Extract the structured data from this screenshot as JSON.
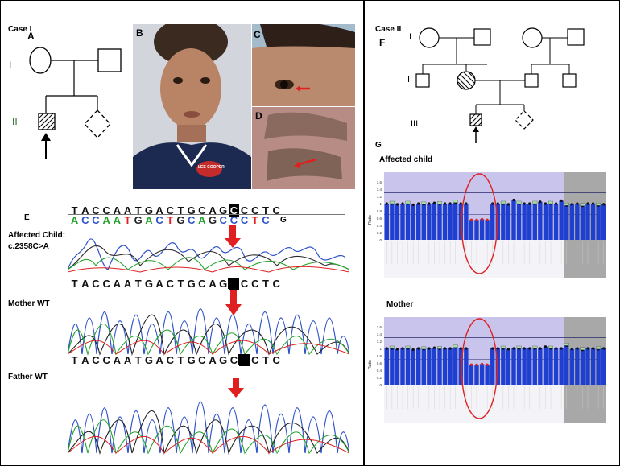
{
  "case1": {
    "title": "Case  I",
    "panel_A": "A",
    "gen_I": "I",
    "gen_II": "II"
  },
  "case2": {
    "title": "Case  II",
    "panel_F": "F",
    "gen_I": "I",
    "gen_II": "II",
    "gen_III": "III"
  },
  "photos": {
    "panel_B": "B",
    "panel_C": "C",
    "panel_D": "D",
    "shirt_logo": "LEE COOPER"
  },
  "sequencing": {
    "panel_E": "E",
    "panel_G_inline": "G",
    "reference_seq": [
      "T",
      "A",
      "C",
      "C",
      "A",
      "A",
      "T",
      "G",
      "A",
      "C",
      "T",
      "G",
      "C",
      "A",
      "G",
      "C",
      "C",
      "C",
      "T",
      "C"
    ],
    "colored_seq": [
      "A",
      "C",
      "C",
      "A",
      "A",
      "T",
      "G",
      "A",
      "C",
      "T",
      "G",
      "C",
      "A",
      "G",
      "C",
      "C",
      "C",
      "T",
      "C"
    ],
    "mother_seq": [
      "T",
      "A",
      "C",
      "C",
      "A",
      "A",
      "T",
      "G",
      "A",
      "C",
      "T",
      "G",
      "C",
      "A",
      "G",
      "C",
      "C",
      "C",
      "T",
      "C"
    ],
    "father_seq": [
      "T",
      "A",
      "C",
      "C",
      "A",
      "A",
      "T",
      "G",
      "A",
      "C",
      "T",
      "G",
      "C",
      "A",
      "G",
      "C",
      "C",
      "C",
      "T",
      "C"
    ],
    "affected_label_1": "Affected Child:",
    "affected_label_2": "c.2358C>A",
    "mother_label": "Mother WT",
    "father_label": "Father WT"
  },
  "mlpa": {
    "panel_G": "G",
    "affected_title": "Affected child",
    "mother_title": "Mother",
    "y_axis_label": "Ratio",
    "y_ticks": [
      "1.6",
      "1.4",
      "1.2",
      "1",
      "0.8",
      "0.6",
      "0.4",
      "0.2",
      "0"
    ],
    "affected_values": [
      1.0,
      1.0,
      0.98,
      1.0,
      1.0,
      0.97,
      1.0,
      0.98,
      1.0,
      1.02,
      0.99,
      1.0,
      1.0,
      1.03,
      1.0,
      1.0,
      0.55,
      0.55,
      0.57,
      0.55,
      1.0,
      1.0,
      1.0,
      0.98,
      1.1,
      1.0,
      1.0,
      1.0,
      1.0,
      1.05,
      1.0,
      1.0,
      1.0,
      1.08,
      0.95,
      0.98,
      1.0,
      0.94,
      1.0,
      1.0,
      0.95,
      0.98
    ],
    "mother_values": [
      1.0,
      1.0,
      0.98,
      1.0,
      1.0,
      0.97,
      1.0,
      0.98,
      1.0,
      1.02,
      0.99,
      1.0,
      1.0,
      1.03,
      1.0,
      1.0,
      0.55,
      0.55,
      0.57,
      0.55,
      1.0,
      1.0,
      1.0,
      0.98,
      1.0,
      1.0,
      1.0,
      1.0,
      1.0,
      1.0,
      1.05,
      1.0,
      1.0,
      1.0,
      1.08,
      0.98,
      1.0,
      0.96,
      1.0,
      1.0,
      0.98,
      1.0
    ],
    "colors": {
      "bar": "#1f3fd0",
      "deleted": "#e02020",
      "highlight": "#c8c4ec",
      "reference": "#a8a8a8",
      "circle": "#e02020"
    }
  }
}
